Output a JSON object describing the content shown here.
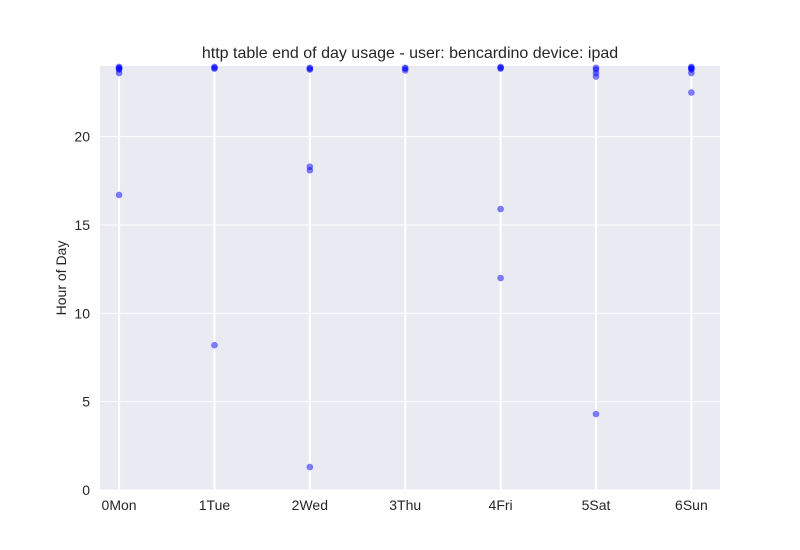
{
  "chart_data": {
    "type": "scatter",
    "title": "http table end of day usage -  user: bencardino device: ipad",
    "xlabel": "",
    "ylabel": "Hour of Day",
    "categories": [
      "0Mon",
      "1Tue",
      "2Wed",
      "3Thu",
      "4Fri",
      "5Sat",
      "6Sun"
    ],
    "xlim": [
      -0.2,
      6.3
    ],
    "ylim": [
      0,
      24
    ],
    "yticks": [
      0,
      5,
      10,
      15,
      20
    ],
    "grid": true,
    "point_color": "#0000ff",
    "series": [
      {
        "points": [
          {
            "x": 0,
            "y": 23.9
          },
          {
            "x": 0,
            "y": 23.95
          },
          {
            "x": 0,
            "y": 23.85
          },
          {
            "x": 0,
            "y": 23.8
          },
          {
            "x": 0,
            "y": 23.6
          },
          {
            "x": 0,
            "y": 16.7
          },
          {
            "x": 1,
            "y": 23.95
          },
          {
            "x": 1,
            "y": 23.9
          },
          {
            "x": 1,
            "y": 23.85
          },
          {
            "x": 1,
            "y": 8.2
          },
          {
            "x": 2,
            "y": 23.9
          },
          {
            "x": 2,
            "y": 23.85
          },
          {
            "x": 2,
            "y": 23.8
          },
          {
            "x": 2,
            "y": 18.3
          },
          {
            "x": 2,
            "y": 18.1
          },
          {
            "x": 2,
            "y": 1.3
          },
          {
            "x": 3,
            "y": 23.9
          },
          {
            "x": 3,
            "y": 23.85
          },
          {
            "x": 3,
            "y": 23.75
          },
          {
            "x": 4,
            "y": 23.95
          },
          {
            "x": 4,
            "y": 23.9
          },
          {
            "x": 4,
            "y": 23.85
          },
          {
            "x": 4,
            "y": 15.9
          },
          {
            "x": 4,
            "y": 12.0
          },
          {
            "x": 5,
            "y": 23.9
          },
          {
            "x": 5,
            "y": 23.8
          },
          {
            "x": 5,
            "y": 23.6
          },
          {
            "x": 5,
            "y": 23.4
          },
          {
            "x": 5,
            "y": 4.3
          },
          {
            "x": 6,
            "y": 23.95
          },
          {
            "x": 6,
            "y": 23.9
          },
          {
            "x": 6,
            "y": 23.85
          },
          {
            "x": 6,
            "y": 23.8
          },
          {
            "x": 6,
            "y": 23.6
          },
          {
            "x": 6,
            "y": 22.5
          }
        ]
      }
    ]
  }
}
